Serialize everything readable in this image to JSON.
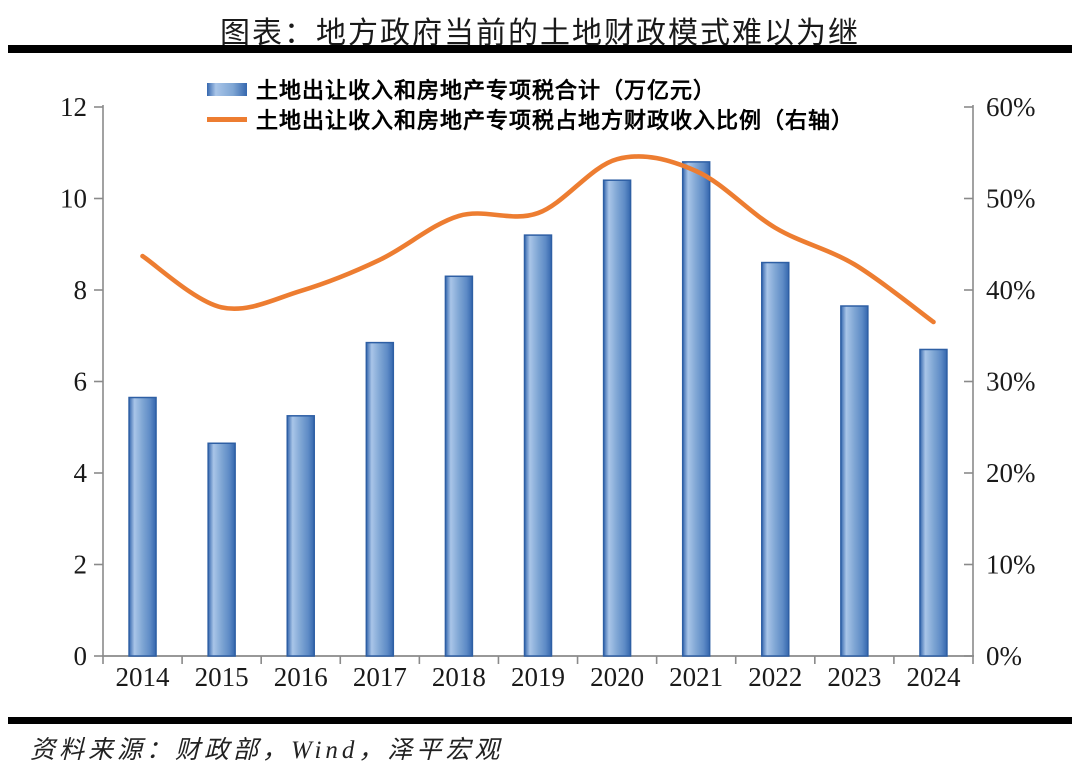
{
  "page": {
    "title": "图表：地方政府当前的土地财政模式难以为继",
    "source": "资料来源：财政部，Wind，泽平宏观"
  },
  "legend": {
    "items": [
      {
        "label": "土地出让收入和房地产专项税合计（万亿元）",
        "swatch": "bar-gradient-swatch"
      },
      {
        "label": "土地出让收入和房地产专项税占地方财政收入比例（右轴）",
        "swatch": "orange-line-swatch"
      }
    ]
  },
  "colors": {
    "bar_dark": "#3567AE",
    "bar_light": "#A9C5E8",
    "bar_mid": "#7FA6D4",
    "bar_edge": "#2E5FA4",
    "line": "#ED7D31",
    "axis": "#8A8A8A",
    "text": "#1A1A1A"
  },
  "chart_data": {
    "type": "combo-bar-line",
    "title": "图表：地方政府当前的土地财政模式难以为继",
    "categories": [
      "2014",
      "2015",
      "2016",
      "2017",
      "2018",
      "2019",
      "2020",
      "2021",
      "2022",
      "2023",
      "2024"
    ],
    "series": [
      {
        "name": "土地出让收入和房地产专项税合计（万亿元）",
        "type": "bar",
        "axis": "left",
        "values": [
          5.65,
          4.65,
          5.25,
          6.85,
          8.3,
          9.2,
          10.4,
          10.8,
          8.6,
          7.65,
          6.7
        ]
      },
      {
        "name": "土地出让收入和房地产专项税占地方财政收入比例（右轴）",
        "type": "line",
        "axis": "right",
        "unit": "%",
        "values": [
          43.7,
          38.1,
          39.9,
          43.3,
          48.1,
          48.4,
          54.3,
          53.0,
          46.8,
          42.8,
          36.5
        ]
      }
    ],
    "left_axis": {
      "min": 0,
      "max": 12,
      "ticks": [
        {
          "value": 0,
          "label": "0"
        },
        {
          "value": 2,
          "label": "2"
        },
        {
          "value": 4,
          "label": "4"
        },
        {
          "value": 6,
          "label": "6"
        },
        {
          "value": 8,
          "label": "8"
        },
        {
          "value": 10,
          "label": "10"
        },
        {
          "value": 12,
          "label": "12"
        }
      ]
    },
    "right_axis": {
      "min": 0,
      "max": 60,
      "ticks": [
        {
          "value": 0,
          "label": "0%"
        },
        {
          "value": 10,
          "label": "10%"
        },
        {
          "value": 20,
          "label": "20%"
        },
        {
          "value": 30,
          "label": "30%"
        },
        {
          "value": 40,
          "label": "40%"
        },
        {
          "value": 50,
          "label": "50%"
        },
        {
          "value": 60,
          "label": "60%"
        }
      ]
    },
    "grid": false,
    "legend_position": "top"
  }
}
